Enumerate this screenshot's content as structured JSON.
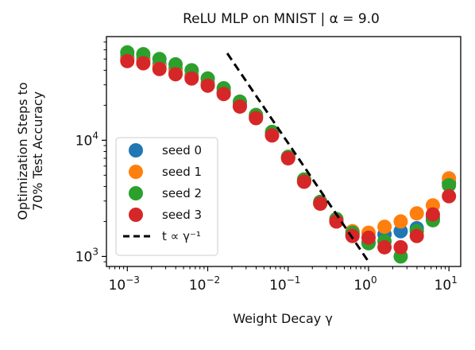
{
  "chart_data": {
    "type": "scatter",
    "title": "ReLU MLP on MNIST | α = 9.0",
    "xlabel": "Weight Decay γ",
    "ylabel_line1": "Optimization Steps to",
    "ylabel_line2": "70% Test Accuracy",
    "xscale": "log",
    "yscale": "log",
    "xlim": [
      0.00055,
      14
    ],
    "ylim": [
      820,
      78000
    ],
    "x_ticks": [
      {
        "value": 0.001,
        "base": "10",
        "exp": "−3"
      },
      {
        "value": 0.01,
        "base": "10",
        "exp": "−2"
      },
      {
        "value": 0.1,
        "base": "10",
        "exp": "−1"
      },
      {
        "value": 1,
        "base": "10",
        "exp": "0"
      },
      {
        "value": 10,
        "base": "10",
        "exp": "1"
      }
    ],
    "y_ticks": [
      {
        "value": 1000,
        "base": "10",
        "exp": "3"
      },
      {
        "value": 10000,
        "base": "10",
        "exp": "4"
      }
    ],
    "grid": false,
    "legend_position": "lower-left",
    "x": [
      0.001,
      0.00158,
      0.00251,
      0.00398,
      0.00631,
      0.01,
      0.0158,
      0.0251,
      0.0398,
      0.0631,
      0.1,
      0.158,
      0.251,
      0.398,
      0.631,
      1.0,
      1.58,
      2.51,
      3.98,
      6.31,
      10.0
    ],
    "series": [
      {
        "name": "seed 0",
        "color": "#1f77b4",
        "values": [
          52000,
          50000,
          45000,
          41000,
          36000,
          31000,
          26000,
          20500,
          16000,
          11500,
          7100,
          4500,
          2900,
          2050,
          1550,
          1320,
          1550,
          1650,
          1750,
          2150,
          4300
        ]
      },
      {
        "name": "seed 1",
        "color": "#ff7f0e",
        "values": [
          50000,
          48000,
          43000,
          39000,
          35000,
          30500,
          25500,
          20000,
          15800,
          11300,
          7000,
          4400,
          2850,
          2000,
          1650,
          1600,
          1800,
          2000,
          2350,
          2750,
          4700
        ]
      },
      {
        "name": "seed 2",
        "color": "#2ca02c",
        "values": [
          57000,
          55000,
          50000,
          45000,
          40000,
          34000,
          28000,
          21500,
          16500,
          11800,
          7200,
          4600,
          2950,
          2100,
          1600,
          1300,
          1350,
          1000,
          1650,
          2050,
          4100
        ]
      },
      {
        "name": "seed 3",
        "color": "#d62728",
        "values": [
          48000,
          46000,
          41000,
          37000,
          34000,
          29500,
          25000,
          19500,
          15500,
          11000,
          7000,
          4400,
          2850,
          2000,
          1500,
          1450,
          1200,
          1200,
          1500,
          2300,
          3300
        ]
      }
    ],
    "reference_line": {
      "label": "t ∝ γ⁻¹",
      "color": "#000000",
      "dashed": true,
      "x": [
        0.0175,
        0.97
      ],
      "y": [
        56000,
        930
      ]
    }
  }
}
